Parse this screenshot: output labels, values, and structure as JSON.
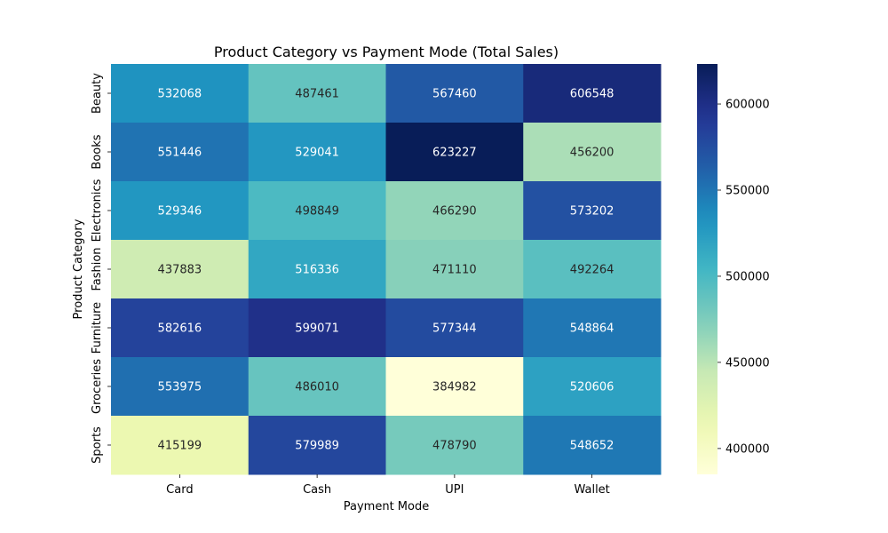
{
  "chart_data": {
    "type": "heatmap",
    "title": "Product Category vs Payment Mode (Total Sales)",
    "xlabel": "Payment Mode",
    "ylabel": "Product Category",
    "x_categories": [
      "Card",
      "Cash",
      "UPI",
      "Wallet"
    ],
    "y_categories": [
      "Beauty",
      "Books",
      "Electronics",
      "Fashion",
      "Furniture",
      "Groceries",
      "Sports"
    ],
    "values": [
      [
        532068,
        487461,
        567460,
        606548
      ],
      [
        551446,
        529041,
        623227,
        456200
      ],
      [
        529346,
        498849,
        466290,
        573202
      ],
      [
        437883,
        516336,
        471110,
        492264
      ],
      [
        582616,
        599071,
        577344,
        548864
      ],
      [
        553975,
        486010,
        384982,
        520606
      ],
      [
        415199,
        579989,
        478790,
        548652
      ]
    ],
    "colorbar": {
      "min": 384982,
      "max": 623227,
      "ticks": [
        400000,
        450000,
        500000,
        550000,
        600000
      ],
      "colormap": "YlGnBu"
    },
    "colors": {
      "low": "#ffffd9",
      "high": "#081d58"
    }
  }
}
